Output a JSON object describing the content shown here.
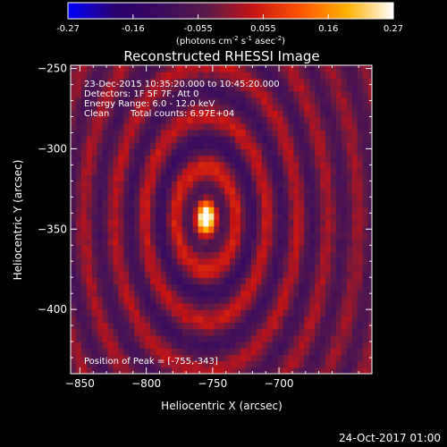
{
  "colors": {
    "background": "#000000",
    "foreground": "#ffffff"
  },
  "chart_data": {
    "type": "heatmap",
    "title": "Reconstructed RHESSI Image",
    "xlabel": "Heliocentric X (arcsec)",
    "ylabel": "Heliocentric Y (arcsec)",
    "xlim": [
      -857,
      -630
    ],
    "ylim": [
      -440,
      -248
    ],
    "xticks": [
      -850,
      -800,
      -750,
      -700
    ],
    "yticks": [
      -250,
      -300,
      -350,
      -400
    ],
    "colorbar": {
      "range": [
        -0.27,
        0.27
      ],
      "ticks": [
        "-0.27",
        "-0.16",
        "-0.055",
        "0.055",
        "0.16",
        "0.27"
      ],
      "unit_label": "(photons cm",
      "unit_exp1": "-2",
      "unit_mid": " s",
      "unit_exp2": "-1",
      "unit_mid2": " asec",
      "unit_exp3": "-2",
      "unit_close": ")",
      "colormap_stops": [
        "#0000ff",
        "#2a0070",
        "#3a0b5c",
        "#5a1a4a",
        "#c81414",
        "#ff5500",
        "#ffb000",
        "#ffffff"
      ]
    },
    "peak_value": 0.27,
    "peak_position": [
      -755,
      -343
    ],
    "annotations": {
      "time": "23-Dec-2015 10:35:20.000 to 10:45:20.000",
      "detectors": "Detectors: 1F 5F 7F, Att 0",
      "energy": "Energy Range: 6.0 - 12.0 keV",
      "method": "Clean",
      "counts": "Total counts: 6.97E+04",
      "peak": "Position of Peak = [-755,-343]"
    }
  },
  "footer_date": "24-Oct-2017 01:00"
}
